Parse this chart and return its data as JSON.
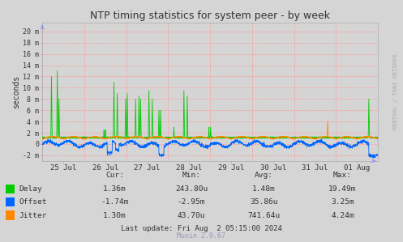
{
  "title": "NTP timing statistics for system peer - by week",
  "ylabel": "seconds",
  "background_color": "#d5d5d5",
  "plot_background": "#d5d5d5",
  "grid_color_h": "#ff9999",
  "grid_color_v": "#ff9999",
  "ytick_labels": [
    "20 m",
    "18 m",
    "16 m",
    "14 m",
    "12 m",
    "10 m",
    "8 m",
    "6 m",
    "4 m",
    "2 m",
    "0",
    "-2 m"
  ],
  "ytick_values": [
    0.02,
    0.018,
    0.016,
    0.014,
    0.012,
    0.01,
    0.008,
    0.006,
    0.004,
    0.002,
    0.0,
    -0.002
  ],
  "ylim": [
    -0.003,
    0.0215
  ],
  "xtick_labels": [
    "25 Jul",
    "26 Jul",
    "27 Jul",
    "28 Jul",
    "29 Jul",
    "30 Jul",
    "31 Jul",
    "01 Aug"
  ],
  "delay_color": "#00cc00",
  "offset_color": "#0066ff",
  "jitter_color": "#ff8800",
  "stats_headers": [
    "Cur:",
    "Min:",
    "Avg:",
    "Max:"
  ],
  "delay_stats": [
    "1.36m",
    "243.80u",
    "1.48m",
    "19.49m"
  ],
  "offset_stats": [
    "-1.74m",
    "-2.95m",
    "35.86u",
    "3.25m"
  ],
  "jitter_stats": [
    "1.30m",
    "43.70u",
    "741.64u",
    "4.24m"
  ],
  "last_update": "Last update: Fri Aug  2 05:15:00 2024",
  "munin_label": "Munin 2.0.67",
  "rrdtool_label": "RRDTOOL / TOBI OETIKER",
  "title_color": "#333333",
  "text_color": "#333333",
  "light_blue_arrow": "#8888ff"
}
